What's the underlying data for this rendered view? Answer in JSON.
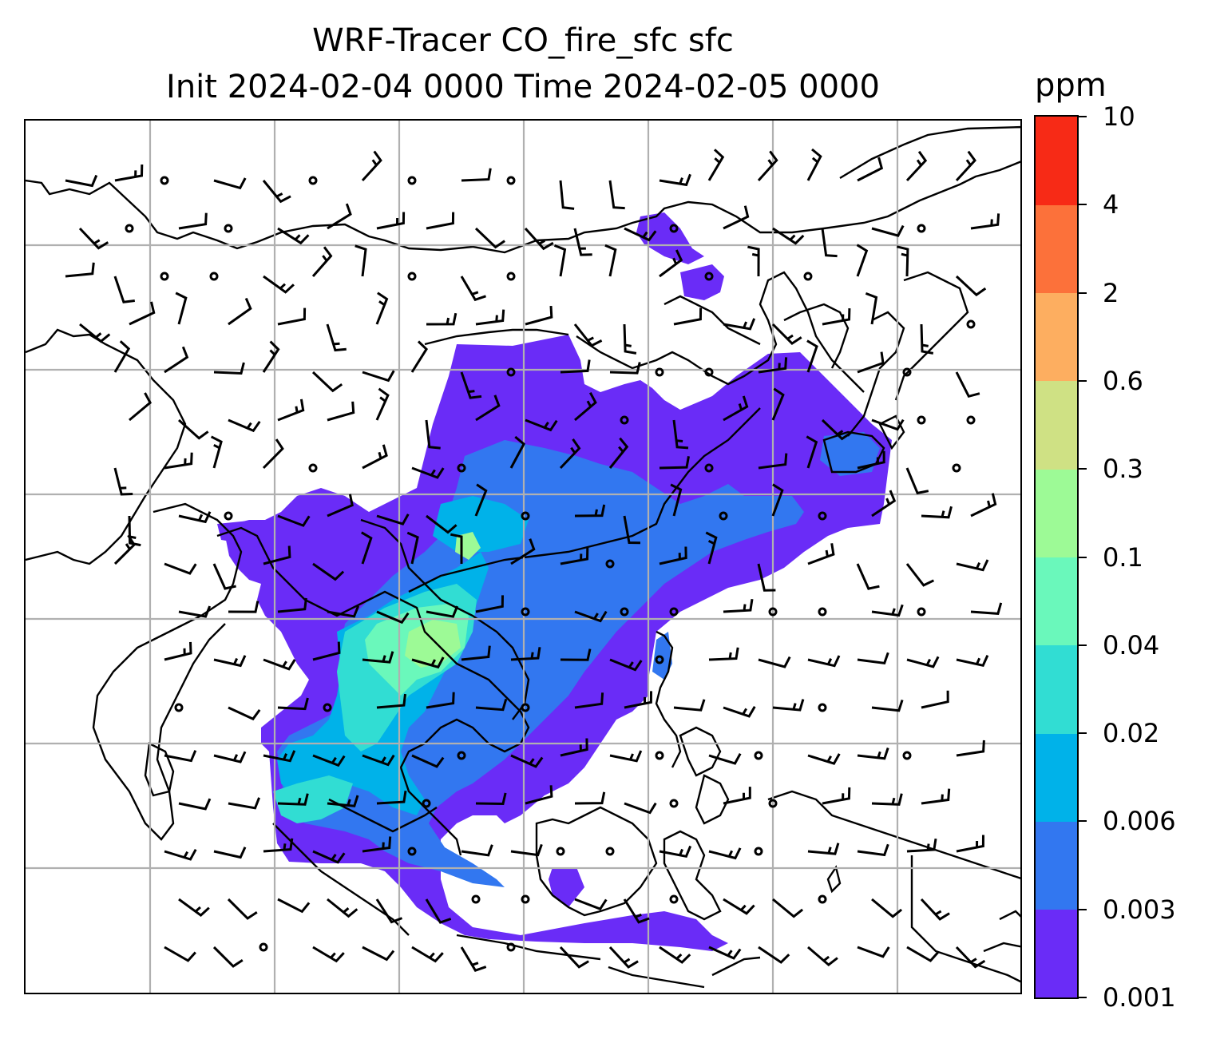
{
  "title": {
    "line1": "WRF-Tracer CO_fire_sfc sfc",
    "line2": "Init 2024-02-04 0000 Time 2024-02-05 0000"
  },
  "colorbar": {
    "unit": "ppm",
    "levels": [
      "0.001",
      "0.003",
      "0.006",
      "0.02",
      "0.04",
      "0.1",
      "0.3",
      "0.6",
      "2",
      "4",
      "10"
    ],
    "colors": [
      "#6a2cf7",
      "#3277f0",
      "#00b2e9",
      "#31ddd3",
      "#6af8bb",
      "#9dfa96",
      "#cfe184",
      "#fdae60",
      "#fc713a",
      "#f72a16"
    ]
  },
  "map": {
    "gridlines": true,
    "coastline_color": "#000000",
    "grid_color": "#b0b0b0"
  }
}
